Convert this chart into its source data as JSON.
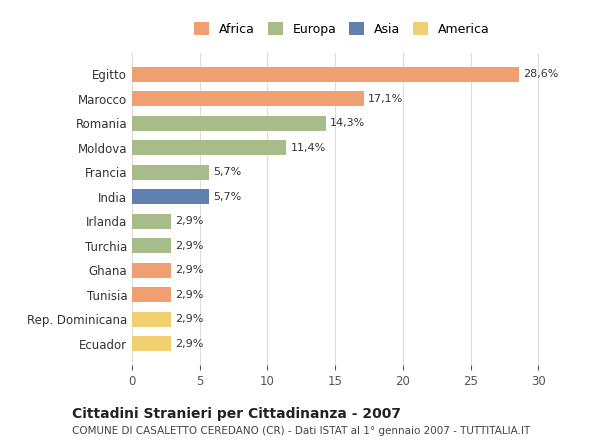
{
  "categories": [
    "Egitto",
    "Marocco",
    "Romania",
    "Moldova",
    "Francia",
    "India",
    "Irlanda",
    "Turchia",
    "Ghana",
    "Tunisia",
    "Rep. Dominicana",
    "Ecuador"
  ],
  "values": [
    28.6,
    17.1,
    14.3,
    11.4,
    5.7,
    5.7,
    2.9,
    2.9,
    2.9,
    2.9,
    2.9,
    2.9
  ],
  "labels": [
    "28,6%",
    "17,1%",
    "14,3%",
    "11,4%",
    "5,7%",
    "5,7%",
    "2,9%",
    "2,9%",
    "2,9%",
    "2,9%",
    "2,9%",
    "2,9%"
  ],
  "colors": [
    "#F0A070",
    "#F0A070",
    "#A8BC8A",
    "#A8BC8A",
    "#A8BC8A",
    "#6080B0",
    "#A8BC8A",
    "#A8BC8A",
    "#F0A070",
    "#F0A070",
    "#F0D070",
    "#F0D070"
  ],
  "legend_labels": [
    "Africa",
    "Europa",
    "Asia",
    "America"
  ],
  "legend_colors": [
    "#F0A070",
    "#A8BC8A",
    "#6080B0",
    "#F0D070"
  ],
  "title": "Cittadini Stranieri per Cittadinanza - 2007",
  "subtitle": "COMUNE DI CASALETTO CEREDANO (CR) - Dati ISTAT al 1° gennaio 2007 - TUTTITALIA.IT",
  "xlim": [
    0,
    31
  ],
  "xticks": [
    0,
    5,
    10,
    15,
    20,
    25,
    30
  ],
  "background_color": "#ffffff",
  "grid_color": "#dddddd"
}
